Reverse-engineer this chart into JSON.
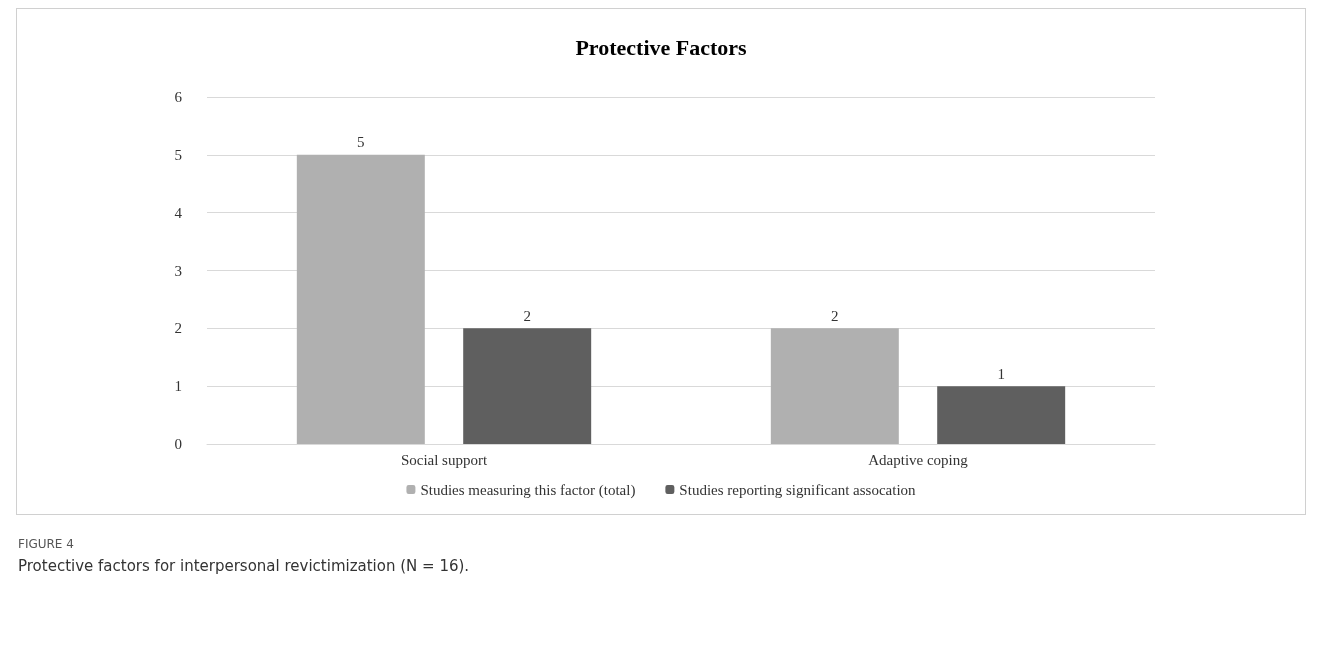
{
  "chart_data": {
    "type": "bar",
    "title": "Protective Factors",
    "categories": [
      "Social support",
      "Adaptive coping"
    ],
    "series": [
      {
        "name": "Studies measuring this factor (total)",
        "color": "#b0b0b0",
        "values": [
          5,
          2
        ]
      },
      {
        "name": "Studies reporting significant assocation",
        "color": "#5f5f5f",
        "values": [
          2,
          1
        ]
      }
    ],
    "ylim": [
      0,
      6
    ],
    "yticks": [
      0,
      1,
      2,
      3,
      4,
      5,
      6
    ],
    "grid": "y",
    "legend": "bottom",
    "data_labels": true,
    "annotations": [
      "FIGURE 4",
      "Protective factors for interpersonal revictimization (N = 16)."
    ]
  }
}
